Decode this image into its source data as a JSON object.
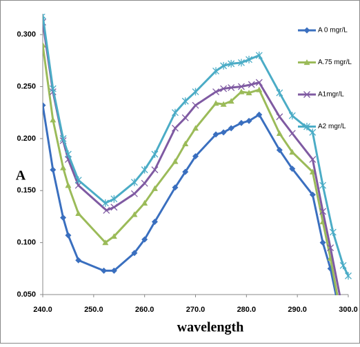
{
  "chart_data": {
    "type": "line",
    "y_label": "A",
    "x_label": "wavelength",
    "xlim": [
      240,
      300
    ],
    "xticks": [
      {
        "value": 240,
        "label": "240.0"
      },
      {
        "value": 250,
        "label": "250.0"
      },
      {
        "value": 260,
        "label": "260.0"
      },
      {
        "value": 270,
        "label": "270.0"
      },
      {
        "value": 280,
        "label": "280.0"
      },
      {
        "value": 290,
        "label": "290.0"
      },
      {
        "value": 300,
        "label": "300.0"
      }
    ],
    "ylim": [
      0.05,
      0.32
    ],
    "yticks": [
      {
        "value": 0.05,
        "label": "0.050"
      },
      {
        "value": 0.1,
        "label": "0.100"
      },
      {
        "value": 0.15,
        "label": "0.150"
      },
      {
        "value": 0.2,
        "label": "0.200"
      },
      {
        "value": 0.25,
        "label": "0.250"
      },
      {
        "value": 0.3,
        "label": "0.300"
      }
    ],
    "legend": "top-right",
    "series": [
      {
        "name": "A 0 mgr/L",
        "color": "#3a6fbf",
        "marker": "diamond",
        "x": [
          240,
          242,
          244,
          245,
          247,
          252,
          254,
          258,
          260,
          262,
          266,
          268,
          270,
          274,
          275.5,
          277,
          279,
          280.5,
          282.5,
          286.5,
          289,
          293,
          295,
          296.5,
          298
        ],
        "values": [
          0.232,
          0.17,
          0.124,
          0.107,
          0.083,
          0.073,
          0.073,
          0.09,
          0.103,
          0.12,
          0.153,
          0.168,
          0.183,
          0.204,
          0.206,
          0.21,
          0.215,
          0.217,
          0.223,
          0.189,
          0.171,
          0.146,
          0.1,
          0.075,
          0.04
        ]
      },
      {
        "name": "A.75 mgr/L",
        "color": "#9bbb59",
        "marker": "triangle",
        "x": [
          240,
          242,
          244,
          245,
          247,
          252.3,
          254,
          258,
          260,
          262,
          266,
          268,
          270,
          274,
          275.5,
          277,
          279,
          280.5,
          282.5,
          286.5,
          289,
          293,
          295,
          296.5,
          298
        ],
        "values": [
          0.29,
          0.218,
          0.172,
          0.155,
          0.128,
          0.1,
          0.106,
          0.127,
          0.138,
          0.152,
          0.178,
          0.195,
          0.21,
          0.234,
          0.233,
          0.236,
          0.245,
          0.244,
          0.247,
          0.205,
          0.187,
          0.168,
          0.12,
          0.085,
          0.045
        ]
      },
      {
        "name": "A1mgr/L",
        "color": "#7f5aa2",
        "marker": "x",
        "x": [
          240,
          242,
          244,
          245,
          247,
          252.5,
          254,
          258,
          260,
          262,
          266,
          268,
          270,
          274,
          275.5,
          277,
          279,
          281,
          282.5,
          286.5,
          289,
          293,
          295,
          296.5,
          298.5
        ],
        "values": [
          0.312,
          0.245,
          0.198,
          0.18,
          0.155,
          0.131,
          0.134,
          0.147,
          0.157,
          0.17,
          0.21,
          0.22,
          0.232,
          0.245,
          0.248,
          0.249,
          0.25,
          0.252,
          0.254,
          0.221,
          0.205,
          0.18,
          0.13,
          0.095,
          0.045
        ]
      },
      {
        "name": "A2 mgr/L",
        "color": "#4bacc6",
        "marker": "asterisk",
        "x": [
          240,
          242,
          244,
          245,
          247,
          252.3,
          254,
          258,
          260,
          262,
          266,
          268,
          270,
          274,
          275.5,
          277,
          279,
          280.5,
          282.5,
          286.5,
          289,
          293,
          295,
          297,
          299,
          300
        ],
        "values": [
          0.318,
          0.248,
          0.2,
          0.185,
          0.16,
          0.138,
          0.142,
          0.158,
          0.17,
          0.185,
          0.225,
          0.236,
          0.245,
          0.265,
          0.27,
          0.272,
          0.273,
          0.276,
          0.28,
          0.244,
          0.222,
          0.206,
          0.155,
          0.11,
          0.078,
          0.068
        ]
      }
    ]
  }
}
